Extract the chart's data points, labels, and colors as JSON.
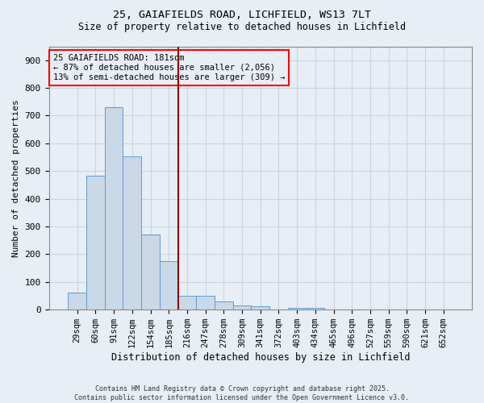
{
  "title1": "25, GAIAFIELDS ROAD, LICHFIELD, WS13 7LT",
  "title2": "Size of property relative to detached houses in Lichfield",
  "xlabel": "Distribution of detached houses by size in Lichfield",
  "ylabel": "Number of detached properties",
  "categories": [
    "29sqm",
    "60sqm",
    "91sqm",
    "122sqm",
    "154sqm",
    "185sqm",
    "216sqm",
    "247sqm",
    "278sqm",
    "309sqm",
    "341sqm",
    "372sqm",
    "403sqm",
    "434sqm",
    "465sqm",
    "496sqm",
    "527sqm",
    "559sqm",
    "590sqm",
    "621sqm",
    "652sqm"
  ],
  "values": [
    62,
    483,
    730,
    554,
    272,
    175,
    50,
    50,
    30,
    15,
    13,
    0,
    7,
    7,
    0,
    0,
    0,
    0,
    0,
    0,
    0
  ],
  "bar_color": "#c9d9e8",
  "bar_edge_color": "#5b9bd5",
  "grid_color": "#c8d4e4",
  "background_color": "#e8eef6",
  "vline_index": 5.5,
  "vline_color": "#8b0000",
  "annotation_box_text": "25 GAIAFIELDS ROAD: 181sqm\n← 87% of detached houses are smaller (2,056)\n13% of semi-detached houses are larger (309) →",
  "annotation_box_color": "red",
  "footer1": "Contains HM Land Registry data © Crown copyright and database right 2025.",
  "footer2": "Contains public sector information licensed under the Open Government Licence v3.0.",
  "ylim": [
    0,
    950
  ],
  "yticks": [
    0,
    100,
    200,
    300,
    400,
    500,
    600,
    700,
    800,
    900
  ]
}
